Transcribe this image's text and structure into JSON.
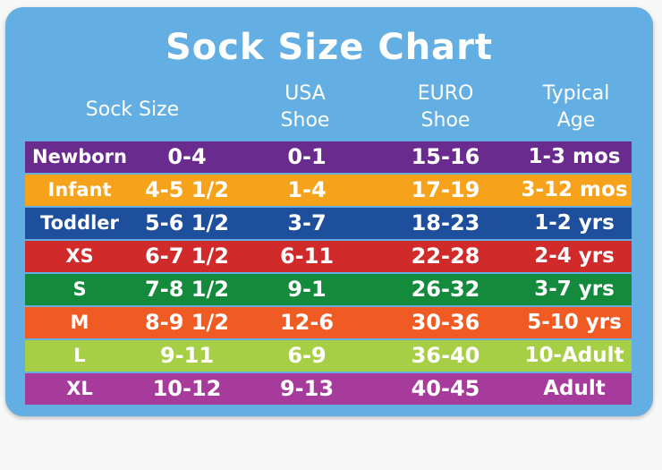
{
  "title": "Sock Size Chart",
  "headers": {
    "sock_size": "Sock Size",
    "usa_line1": "USA",
    "usa_line2": "Shoe",
    "euro_line1": "EURO",
    "euro_line2": "Shoe",
    "age_line1": "Typical",
    "age_line2": "Age"
  },
  "colors": {
    "background": "#63aee3",
    "rows": [
      "#6a2b8f",
      "#f7a21b",
      "#1d4f9c",
      "#d02a2a",
      "#138a3c",
      "#ef5b22",
      "#a7cf45",
      "#a63b9b"
    ]
  },
  "rows": [
    {
      "size": "Newborn",
      "sock": "0-4",
      "usa": "0-1",
      "euro": "15-16",
      "age": "1-3 mos"
    },
    {
      "size": "Infant",
      "sock": "4-5 1/2",
      "usa": "1-4",
      "euro": "17-19",
      "age": "3-12 mos"
    },
    {
      "size": "Toddler",
      "sock": "5-6 1/2",
      "usa": "3-7",
      "euro": "18-23",
      "age": "1-2 yrs"
    },
    {
      "size": "XS",
      "sock": "6-7 1/2",
      "usa": "6-11",
      "euro": "22-28",
      "age": "2-4 yrs"
    },
    {
      "size": "S",
      "sock": "7-8 1/2",
      "usa": "9-1",
      "euro": "26-32",
      "age": "3-7 yrs"
    },
    {
      "size": "M",
      "sock": "8-9 1/2",
      "usa": "12-6",
      "euro": "30-36",
      "age": "5-10 yrs"
    },
    {
      "size": "L",
      "sock": "9-11",
      "usa": "6-9",
      "euro": "36-40",
      "age": "10-Adult"
    },
    {
      "size": "XL",
      "sock": "10-12",
      "usa": "9-13",
      "euro": "40-45",
      "age": "Adult"
    }
  ]
}
